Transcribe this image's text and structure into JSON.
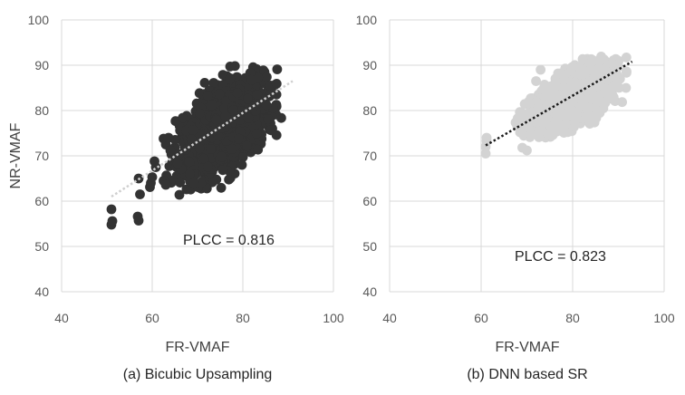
{
  "figure": {
    "ylabel": "NR-VMAF",
    "captions": [
      "(a) Bicubic Upsampling",
      "(b) DNN based SR"
    ]
  },
  "chart_data": [
    {
      "type": "scatter",
      "title": "",
      "caption": "(a) Bicubic Upsampling",
      "xlabel": "FR-VMAF",
      "ylabel": "NR-VMAF",
      "xlim": [
        40,
        100
      ],
      "ylim": [
        40,
        100
      ],
      "xticks": [
        40,
        60,
        80,
        100
      ],
      "yticks": [
        40,
        50,
        60,
        70,
        80,
        90,
        100
      ],
      "grid": true,
      "legend": "none",
      "annotation": "PLCC = 0.816",
      "marker_color": "#333333",
      "trendline": {
        "x": [
          51,
          91
        ],
        "y": [
          61,
          86.5
        ],
        "color": "#cfcfcf",
        "style": "dotted"
      },
      "cluster": {
        "x_center": 78,
        "y_center": 77.5,
        "x_range": [
          62,
          90
        ],
        "y_range": [
          62,
          90
        ],
        "slope": 0.64,
        "spread": 4.6,
        "n": 1300
      },
      "points": [
        [
          51,
          54.8
        ],
        [
          51.2,
          55.6
        ],
        [
          51,
          58.2
        ],
        [
          57,
          55.7
        ],
        [
          56.8,
          56.6
        ],
        [
          57.3,
          61.5
        ],
        [
          57,
          65
        ],
        [
          59.5,
          63.1
        ],
        [
          59.7,
          64
        ],
        [
          60,
          65.3
        ],
        [
          60.8,
          67.5
        ],
        [
          60.5,
          68.8
        ],
        [
          62.5,
          64.5
        ],
        [
          63,
          63.6
        ],
        [
          66,
          61.4
        ],
        [
          62.5,
          73.8
        ],
        [
          63,
          72.5
        ],
        [
          63.6,
          74
        ],
        [
          64,
          71.2
        ],
        [
          79.8,
          68
        ]
      ]
    },
    {
      "type": "scatter",
      "title": "",
      "caption": "(b) DNN based SR",
      "xlabel": "FR-VMAF",
      "ylabel": "",
      "xlim": [
        40,
        100
      ],
      "ylim": [
        40,
        100
      ],
      "xticks": [
        40,
        60,
        80,
        100
      ],
      "yticks": [
        40,
        50,
        60,
        70,
        80,
        90,
        100
      ],
      "grid": true,
      "legend": "none",
      "annotation": "PLCC = 0.823",
      "marker_color": "#d3d3d3",
      "trendline": {
        "x": [
          61,
          93
        ],
        "y": [
          72.3,
          90.8
        ],
        "color": "#1a1a1a",
        "style": "dotted"
      },
      "cluster": {
        "x_center": 82,
        "y_center": 84,
        "x_range": [
          65,
          94
        ],
        "y_range": [
          74,
          92
        ],
        "slope": 0.58,
        "spread": 3.0,
        "n": 1300
      },
      "points": [
        [
          61,
          70.5
        ],
        [
          61,
          72
        ],
        [
          61.2,
          73.3
        ],
        [
          61.2,
          74
        ],
        [
          69,
          71.8
        ],
        [
          70,
          71.2
        ],
        [
          68.5,
          75.2
        ],
        [
          69.5,
          77.5
        ],
        [
          72,
          86.5
        ],
        [
          73,
          89
        ]
      ]
    }
  ]
}
